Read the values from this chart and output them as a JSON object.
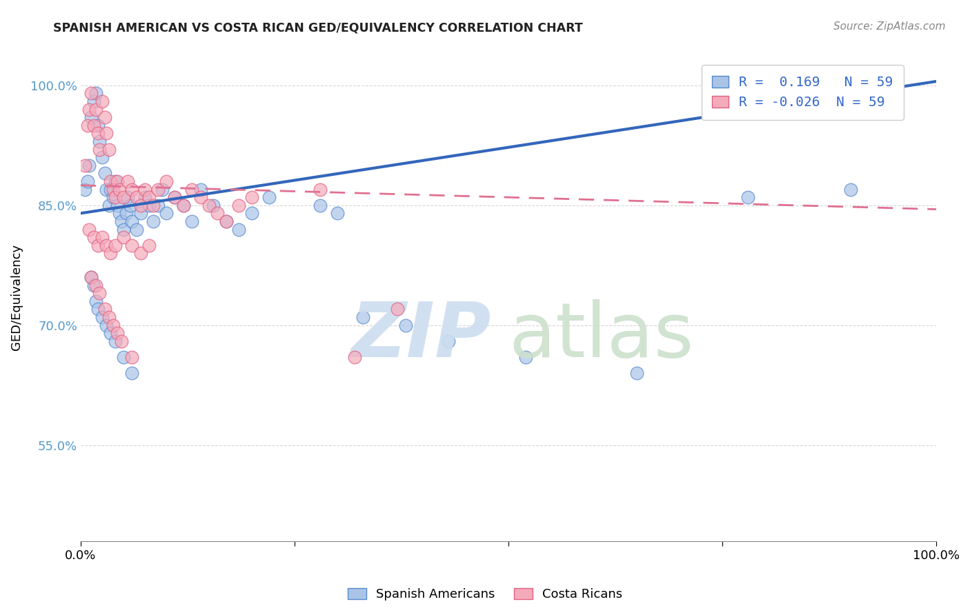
{
  "title": "SPANISH AMERICAN VS COSTA RICAN GED/EQUIVALENCY CORRELATION CHART",
  "source": "Source: ZipAtlas.com",
  "ylabel": "GED/Equivalency",
  "ytick_positions": [
    0.55,
    0.7,
    0.85,
    1.0
  ],
  "ytick_labels": [
    "55.0%",
    "70.0%",
    "85.0%",
    "100.0%"
  ],
  "xlim": [
    0.0,
    1.0
  ],
  "ylim": [
    0.43,
    1.04
  ],
  "R_blue": 0.169,
  "N_blue": 59,
  "R_pink": -0.026,
  "N_pink": 59,
  "legend_labels": [
    "Spanish Americans",
    "Costa Ricans"
  ],
  "blue_fill": "#aac4e8",
  "blue_edge": "#5588cc",
  "pink_fill": "#f5aabb",
  "pink_edge": "#e06080",
  "blue_line_color": "#3366bb",
  "pink_line_color": "#e07090",
  "grid_color": "#cccccc",
  "tick_color_y": "#5599cc",
  "title_color": "#222222",
  "source_color": "#888888",
  "watermark_zip_color": "#ccddf0",
  "watermark_atlas_color": "#cce0cc",
  "blue_x": [
    0.005,
    0.008,
    0.01,
    0.012,
    0.015,
    0.018,
    0.02,
    0.022,
    0.025,
    0.028,
    0.03,
    0.033,
    0.035,
    0.038,
    0.04,
    0.043,
    0.045,
    0.048,
    0.05,
    0.053,
    0.055,
    0.058,
    0.06,
    0.065,
    0.07,
    0.075,
    0.08,
    0.085,
    0.09,
    0.095,
    0.1,
    0.11,
    0.12,
    0.13,
    0.14,
    0.155,
    0.17,
    0.185,
    0.2,
    0.22,
    0.012,
    0.015,
    0.018,
    0.02,
    0.025,
    0.03,
    0.035,
    0.04,
    0.05,
    0.06,
    0.28,
    0.3,
    0.33,
    0.38,
    0.43,
    0.52,
    0.65,
    0.78,
    0.9
  ],
  "blue_y": [
    0.87,
    0.88,
    0.9,
    0.96,
    0.98,
    0.99,
    0.95,
    0.93,
    0.91,
    0.89,
    0.87,
    0.85,
    0.87,
    0.86,
    0.88,
    0.85,
    0.84,
    0.83,
    0.82,
    0.84,
    0.86,
    0.85,
    0.83,
    0.82,
    0.84,
    0.86,
    0.85,
    0.83,
    0.85,
    0.87,
    0.84,
    0.86,
    0.85,
    0.83,
    0.87,
    0.85,
    0.83,
    0.82,
    0.84,
    0.86,
    0.76,
    0.75,
    0.73,
    0.72,
    0.71,
    0.7,
    0.69,
    0.68,
    0.66,
    0.64,
    0.85,
    0.84,
    0.71,
    0.7,
    0.68,
    0.66,
    0.64,
    0.86,
    0.87
  ],
  "pink_x": [
    0.005,
    0.008,
    0.01,
    0.012,
    0.015,
    0.018,
    0.02,
    0.022,
    0.025,
    0.028,
    0.03,
    0.033,
    0.035,
    0.038,
    0.04,
    0.043,
    0.045,
    0.05,
    0.055,
    0.06,
    0.065,
    0.07,
    0.075,
    0.08,
    0.085,
    0.09,
    0.1,
    0.11,
    0.12,
    0.13,
    0.14,
    0.15,
    0.16,
    0.17,
    0.185,
    0.2,
    0.01,
    0.015,
    0.02,
    0.025,
    0.03,
    0.035,
    0.04,
    0.05,
    0.06,
    0.07,
    0.08,
    0.28,
    0.32,
    0.37,
    0.012,
    0.018,
    0.022,
    0.028,
    0.033,
    0.038,
    0.043,
    0.048,
    0.06
  ],
  "pink_y": [
    0.9,
    0.95,
    0.97,
    0.99,
    0.95,
    0.97,
    0.94,
    0.92,
    0.98,
    0.96,
    0.94,
    0.92,
    0.88,
    0.87,
    0.86,
    0.88,
    0.87,
    0.86,
    0.88,
    0.87,
    0.86,
    0.85,
    0.87,
    0.86,
    0.85,
    0.87,
    0.88,
    0.86,
    0.85,
    0.87,
    0.86,
    0.85,
    0.84,
    0.83,
    0.85,
    0.86,
    0.82,
    0.81,
    0.8,
    0.81,
    0.8,
    0.79,
    0.8,
    0.81,
    0.8,
    0.79,
    0.8,
    0.87,
    0.66,
    0.72,
    0.76,
    0.75,
    0.74,
    0.72,
    0.71,
    0.7,
    0.69,
    0.68,
    0.66
  ],
  "blue_line_x0": 0.0,
  "blue_line_y0": 0.84,
  "blue_line_x1": 1.0,
  "blue_line_y1": 1.005,
  "pink_line_x0": 0.0,
  "pink_line_y0": 0.875,
  "pink_line_x1": 1.0,
  "pink_line_y1": 0.845
}
